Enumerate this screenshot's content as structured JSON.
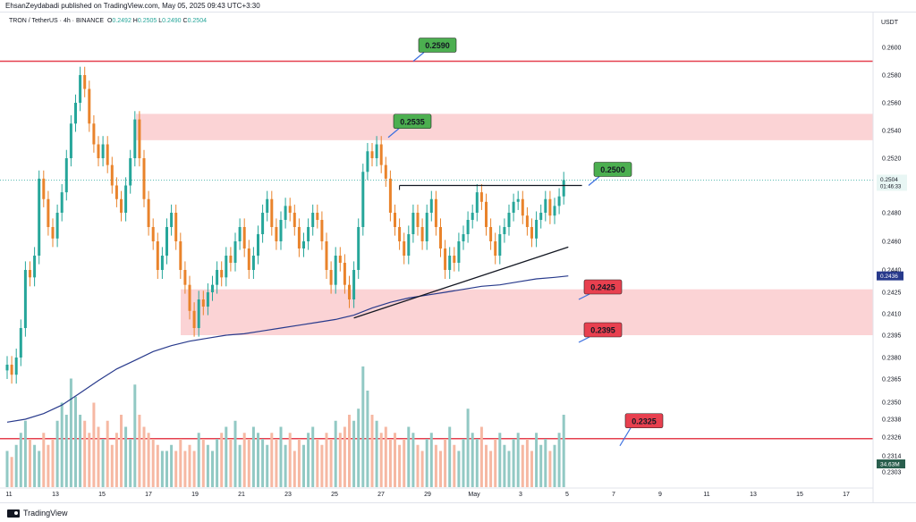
{
  "header": {
    "published": "EhsanZeydabadi published on TradingView.com, May 05, 2025 09:43 UTC+3:30"
  },
  "legend": {
    "symbol": "TRON / TetherUS · 4h · BINANCE",
    "open_label": "O",
    "open": "0.2492",
    "high_label": "H",
    "high": "0.2505",
    "low_label": "L",
    "low": "0.2490",
    "close_label": "C",
    "close": "0.2504"
  },
  "currency": "USDT",
  "footer": {
    "brand": "TradingView"
  },
  "colors": {
    "up": "#26a69a",
    "down": "#e9832b",
    "vol_up": "#92c9c4",
    "vol_down": "#f6b8a3",
    "red_line": "#e5404f",
    "zone": "#fbd3d5",
    "ma": "#283a8c",
    "green_label": "#4caf50",
    "red_label": "#e8404f"
  },
  "chart_data": {
    "type": "candlestick",
    "y_axis_ticks": [
      "0.2600",
      "0.2580",
      "0.2560",
      "0.2540",
      "0.2520",
      "0.2480",
      "0.2460",
      "0.2440",
      "0.2425",
      "0.2410",
      "0.2395",
      "0.2380",
      "0.2365",
      "0.2350",
      "0.2338",
      "0.2326",
      "0.2314",
      "0.2303"
    ],
    "x_axis_ticks": [
      "11",
      "13",
      "15",
      "17",
      "19",
      "21",
      "23",
      "25",
      "27",
      "29",
      "May",
      "3",
      "5",
      "7",
      "9",
      "11",
      "13",
      "15",
      "17"
    ],
    "price_tag": {
      "value": "0.2504",
      "countdown": "01:46:33"
    },
    "ma_tag": "0.2436",
    "volume_tag": "34.63M",
    "annotations": [
      {
        "label": "0.2590",
        "style": "green"
      },
      {
        "label": "0.2535",
        "style": "green"
      },
      {
        "label": "0.2500",
        "style": "green"
      },
      {
        "label": "0.2425",
        "style": "red"
      },
      {
        "label": "0.2395",
        "style": "red"
      },
      {
        "label": "0.2325",
        "style": "red"
      }
    ],
    "horizontal_lines": [
      0.259,
      0.2325
    ],
    "zones": [
      {
        "from": 0.2533,
        "to": 0.2552
      },
      {
        "from": 0.2395,
        "to": 0.2427
      }
    ],
    "resistance_line": 0.25,
    "rising_trendline": [
      {
        "x": 76,
        "y": 0.2407
      },
      {
        "x": 123,
        "y": 0.2456
      }
    ],
    "moving_average": [
      [
        0,
        0.2336
      ],
      [
        4,
        0.2338
      ],
      [
        8,
        0.2342
      ],
      [
        12,
        0.2348
      ],
      [
        16,
        0.2356
      ],
      [
        20,
        0.2364
      ],
      [
        24,
        0.2372
      ],
      [
        28,
        0.2378
      ],
      [
        32,
        0.2384
      ],
      [
        36,
        0.2388
      ],
      [
        40,
        0.2391
      ],
      [
        44,
        0.2393
      ],
      [
        48,
        0.2395
      ],
      [
        52,
        0.2396
      ],
      [
        56,
        0.2398
      ],
      [
        60,
        0.24
      ],
      [
        64,
        0.2402
      ],
      [
        68,
        0.2404
      ],
      [
        72,
        0.2406
      ],
      [
        76,
        0.2409
      ],
      [
        80,
        0.2414
      ],
      [
        84,
        0.2418
      ],
      [
        88,
        0.2421
      ],
      [
        92,
        0.2423
      ],
      [
        96,
        0.2425
      ],
      [
        100,
        0.2427
      ],
      [
        104,
        0.2429
      ],
      [
        108,
        0.243
      ],
      [
        112,
        0.2432
      ],
      [
        116,
        0.2434
      ],
      [
        120,
        0.2435
      ],
      [
        123,
        0.2436
      ]
    ],
    "closes": [
      0.2375,
      0.2368,
      0.238,
      0.24,
      0.244,
      0.2435,
      0.245,
      0.2505,
      0.249,
      0.247,
      0.2462,
      0.248,
      0.2495,
      0.252,
      0.2545,
      0.256,
      0.258,
      0.257,
      0.2545,
      0.253,
      0.252,
      0.253,
      0.2515,
      0.25,
      0.249,
      0.248,
      0.25,
      0.252,
      0.2548,
      0.252,
      0.249,
      0.247,
      0.246,
      0.244,
      0.245,
      0.247,
      0.248,
      0.246,
      0.244,
      0.243,
      0.2412,
      0.24,
      0.242,
      0.2415,
      0.2425,
      0.243,
      0.244,
      0.2435,
      0.245,
      0.2445,
      0.246,
      0.247,
      0.2455,
      0.244,
      0.245,
      0.2465,
      0.248,
      0.249,
      0.247,
      0.246,
      0.2475,
      0.2485,
      0.248,
      0.247,
      0.2455,
      0.246,
      0.247,
      0.248,
      0.2475,
      0.246,
      0.244,
      0.243,
      0.245,
      0.2445,
      0.243,
      0.242,
      0.244,
      0.247,
      0.251,
      0.2525,
      0.252,
      0.253,
      0.2515,
      0.2505,
      0.248,
      0.247,
      0.246,
      0.245,
      0.2465,
      0.248,
      0.247,
      0.246,
      0.248,
      0.249,
      0.247,
      0.2455,
      0.244,
      0.245,
      0.2445,
      0.246,
      0.2465,
      0.2475,
      0.248,
      0.2495,
      0.2488,
      0.247,
      0.246,
      0.245,
      0.2465,
      0.247,
      0.248,
      0.2488,
      0.249,
      0.2478,
      0.247,
      0.2462,
      0.2475,
      0.248,
      0.249,
      0.2478,
      0.2485,
      0.2492,
      0.2504
    ],
    "volumes": [
      0.3,
      0.25,
      0.35,
      0.45,
      0.55,
      0.4,
      0.35,
      0.3,
      0.45,
      0.35,
      0.4,
      0.55,
      0.7,
      0.6,
      0.9,
      0.75,
      0.6,
      0.55,
      0.45,
      0.7,
      0.5,
      0.4,
      0.55,
      0.35,
      0.45,
      0.6,
      0.5,
      0.4,
      0.85,
      0.6,
      0.5,
      0.45,
      0.4,
      0.35,
      0.3,
      0.3,
      0.35,
      0.3,
      0.4,
      0.3,
      0.35,
      0.3,
      0.45,
      0.4,
      0.35,
      0.3,
      0.4,
      0.45,
      0.5,
      0.4,
      0.55,
      0.35,
      0.45,
      0.4,
      0.5,
      0.45,
      0.4,
      0.35,
      0.45,
      0.4,
      0.5,
      0.35,
      0.45,
      0.3,
      0.4,
      0.35,
      0.45,
      0.5,
      0.4,
      0.35,
      0.45,
      0.4,
      0.55,
      0.45,
      0.5,
      0.6,
      0.55,
      0.65,
      1.0,
      0.8,
      0.6,
      0.55,
      0.45,
      0.5,
      0.4,
      0.45,
      0.35,
      0.4,
      0.5,
      0.45,
      0.35,
      0.3,
      0.4,
      0.45,
      0.35,
      0.3,
      0.4,
      0.5,
      0.35,
      0.3,
      0.4,
      0.65,
      0.45,
      0.4,
      0.5,
      0.35,
      0.3,
      0.4,
      0.45,
      0.35,
      0.3,
      0.4,
      0.45,
      0.35,
      0.4,
      0.3,
      0.45,
      0.35,
      0.4,
      0.3,
      0.35,
      0.45,
      0.6
    ]
  }
}
